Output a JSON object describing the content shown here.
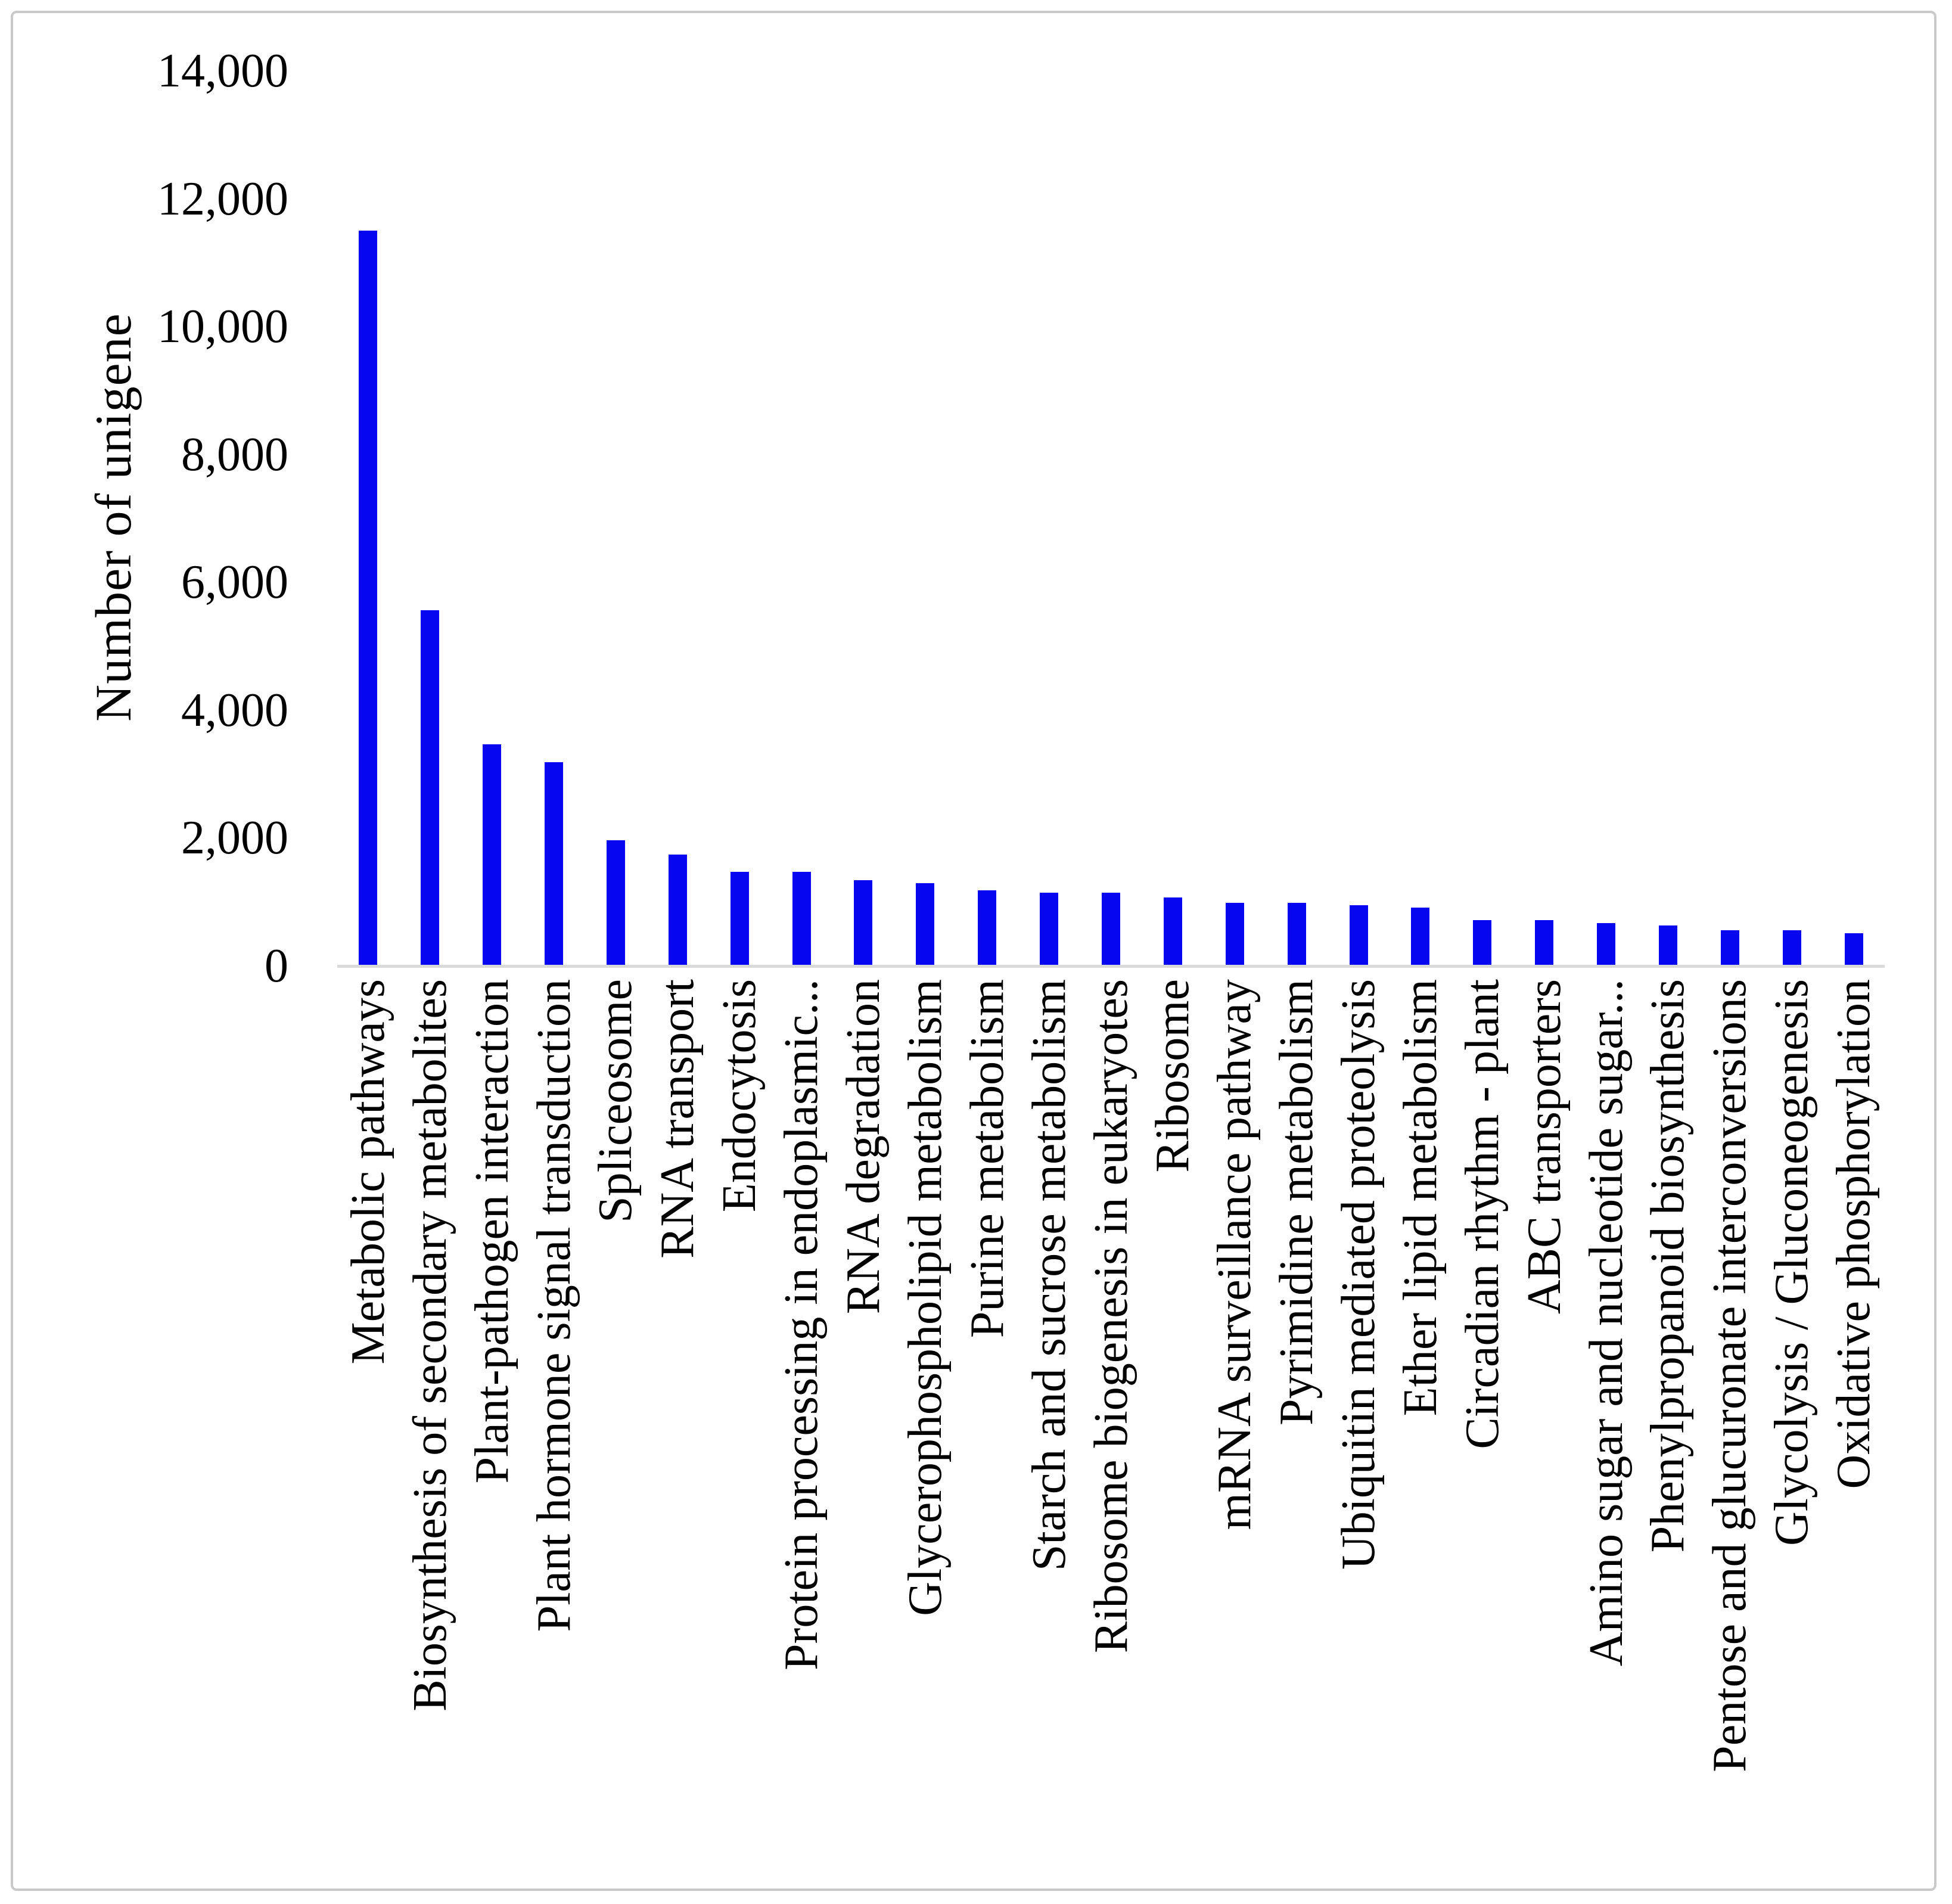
{
  "figure": {
    "background": "#ffffff",
    "border_color": "#c9c9c9"
  },
  "chart_data": {
    "type": "bar",
    "title": "",
    "xlabel": "",
    "ylabel": "Number of unigene",
    "bar_color": "#0606f0",
    "axis_line_color": "#d9d9d9",
    "text_color": "#000000",
    "grid": false,
    "legend": null,
    "ylim": [
      0,
      14000
    ],
    "ytick_step": 2000,
    "yticks": [
      0,
      2000,
      4000,
      6000,
      8000,
      10000,
      12000,
      14000
    ],
    "categories": [
      "Metabolic pathways",
      "Biosynthesis of secondary metabolites",
      "Plant-pathogen interaction",
      "Plant hormone signal transduction",
      "Spliceosome",
      "RNA transport",
      "Endocytosis",
      "Protein processing in endoplasmic...",
      "RNA degradation",
      "Glycerophospholipid metabolism",
      "Purine metabolism",
      "Starch and sucrose metabolism",
      "Ribosome biogenesis in eukaryotes",
      "Ribosome",
      "mRNA surveillance pathway",
      "Pyrimidine metabolism",
      "Ubiquitin mediated proteolysis",
      "Ether lipid metabolism",
      "Circadian rhythm - plant",
      "ABC transporters",
      "Amino sugar and nucleotide sugar...",
      "Phenylpropanoid biosynthesis",
      "Pentose and glucuronate interconversions",
      "Glycolysis / Gluconeogenesis",
      "Oxidative phosphorylation"
    ],
    "values": [
      11500,
      5560,
      3470,
      3190,
      1970,
      1740,
      1470,
      1470,
      1340,
      1300,
      1180,
      1150,
      1150,
      1070,
      990,
      990,
      950,
      910,
      720,
      720,
      670,
      630,
      560,
      560,
      510
    ]
  }
}
